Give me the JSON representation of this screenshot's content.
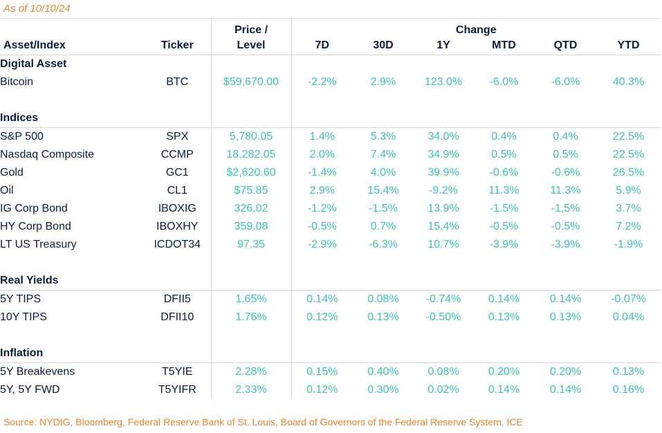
{
  "as_of": "As of 10/10/24",
  "headers": {
    "asset": "Asset/Index",
    "ticker": "Ticker",
    "price_line1": "Price /",
    "price_line2": "Level",
    "change": "Change",
    "periods": [
      "7D",
      "30D",
      "1Y",
      "MTD",
      "QTD",
      "YTD"
    ]
  },
  "sections": [
    {
      "title": "Digital Asset",
      "rows": [
        {
          "asset": "Bitcoin",
          "ticker": "BTC",
          "price": "$59,670.00",
          "values": [
            "-2.2%",
            "2.9%",
            "123.0%",
            "-6.0%",
            "-6.0%",
            "40.3%"
          ]
        }
      ]
    },
    {
      "title": "Indices",
      "rows": [
        {
          "asset": "S&P 500",
          "ticker": "SPX",
          "price": "5,780.05",
          "values": [
            "1.4%",
            "5.3%",
            "34.0%",
            "0.4%",
            "0.4%",
            "22.5%"
          ]
        },
        {
          "asset": "Nasdaq Composite",
          "ticker": "CCMP",
          "price": "18,282.05",
          "values": [
            "2.0%",
            "7.4%",
            "34.9%",
            "0.5%",
            "0.5%",
            "22.5%"
          ]
        },
        {
          "asset": "Gold",
          "ticker": "GC1",
          "price": "$2,620.60",
          "values": [
            "-1.4%",
            "4.0%",
            "39.9%",
            "-0.6%",
            "-0.6%",
            "26.5%"
          ]
        },
        {
          "asset": "Oil",
          "ticker": "CL1",
          "price": "$75.85",
          "values": [
            "2.9%",
            "15.4%",
            "-9.2%",
            "11.3%",
            "11.3%",
            "5.9%"
          ]
        },
        {
          "asset": "IG Corp Bond",
          "ticker": "IBOXIG",
          "price": "326.02",
          "values": [
            "-1.2%",
            "-1.5%",
            "13.9%",
            "-1.5%",
            "-1.5%",
            "3.7%"
          ]
        },
        {
          "asset": "HY Corp Bond",
          "ticker": "IBOXHY",
          "price": "359.08",
          "values": [
            "-0.5%",
            "0.7%",
            "15.4%",
            "-0.5%",
            "-0.5%",
            "7.2%"
          ]
        },
        {
          "asset": "LT US Treasury",
          "ticker": "ICDOT34",
          "price": "97.35",
          "values": [
            "-2.9%",
            "-6.3%",
            "10.7%",
            "-3.9%",
            "-3.9%",
            "-1.9%"
          ]
        }
      ]
    },
    {
      "title": "Real Yields",
      "rows": [
        {
          "asset": "5Y TIPS",
          "ticker": "DFII5",
          "price": "1.65%",
          "values": [
            "0.14%",
            "0.08%",
            "-0.74%",
            "0.14%",
            "0.14%",
            "-0.07%"
          ]
        },
        {
          "asset": "10Y TIPS",
          "ticker": "DFII10",
          "price": "1.76%",
          "values": [
            "0.12%",
            "0.13%",
            "-0.50%",
            "0.13%",
            "0.13%",
            "0.04%"
          ]
        }
      ]
    },
    {
      "title": "Inflation",
      "rows": [
        {
          "asset": "5Y Breakevens",
          "ticker": "T5YIE",
          "price": "2.28%",
          "values": [
            "0.15%",
            "0.40%",
            "0.08%",
            "0.20%",
            "0.20%",
            "0.13%"
          ]
        },
        {
          "asset": "5Y, 5Y FWD",
          "ticker": "T5YIFR",
          "price": "2.33%",
          "values": [
            "0.12%",
            "0.30%",
            "0.02%",
            "0.14%",
            "0.14%",
            "0.16%"
          ]
        }
      ]
    }
  ],
  "source": "Source: NYDIG, Bloomberg, Federal Reserve Bank of St. Louis, Board of Governors of the Federal Reserve System, ICE",
  "colors": {
    "accent_orange": "#e8852d",
    "value_teal": "#3cc3b5",
    "text_navy": "#0a1d3a"
  }
}
